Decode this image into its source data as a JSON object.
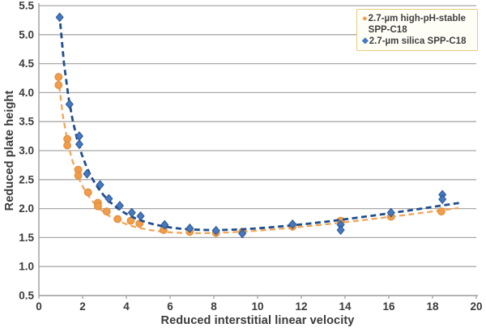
{
  "chart_data": {
    "type": "scatter",
    "title": "",
    "xlabel": "Reduced interstitial linear velocity",
    "ylabel": "Reduced plate height",
    "xlim": [
      0,
      20
    ],
    "ylim": [
      0.5,
      5.5
    ],
    "x_ticks": [
      0,
      2,
      4,
      6,
      8,
      10,
      12,
      14,
      16,
      18,
      20
    ],
    "y_ticks": [
      0.5,
      1.0,
      1.5,
      2.0,
      2.5,
      3.0,
      3.5,
      4.0,
      4.5,
      5.0,
      5.5
    ],
    "grid": "horizontal-only",
    "legend_position": "top-right",
    "colors": {
      "gridline": "#a9a9a9",
      "axis_line": "#9b9b9b",
      "tick_text": "#3b3b3b",
      "legend_border": "#e9cb7b",
      "legend_bg": "#fffef6"
    },
    "series": [
      {
        "name": "2.7-µm high-pH-stable SPP-C18",
        "marker": "circle",
        "marker_fill": "#f09c4b",
        "marker_stroke": "#de8a35",
        "line_color": "#f2a558",
        "line_style": "dashed",
        "points": [
          [
            0.9,
            4.27
          ],
          [
            0.9,
            4.13
          ],
          [
            1.3,
            3.2
          ],
          [
            1.3,
            3.09
          ],
          [
            1.8,
            2.67
          ],
          [
            1.8,
            2.57
          ],
          [
            2.25,
            2.28
          ],
          [
            2.7,
            2.1
          ],
          [
            2.7,
            2.04
          ],
          [
            3.1,
            1.95
          ],
          [
            3.6,
            1.82
          ],
          [
            4.2,
            1.79
          ],
          [
            4.6,
            1.74
          ],
          [
            5.7,
            1.63
          ],
          [
            6.9,
            1.6
          ],
          [
            8.1,
            1.58
          ],
          [
            9.3,
            1.6
          ],
          [
            11.6,
            1.69
          ],
          [
            13.8,
            1.79
          ],
          [
            16.1,
            1.86
          ],
          [
            18.4,
            1.95
          ]
        ],
        "trend_fit": {
          "A": 0.728,
          "B": 3.078,
          "C": 0.0584,
          "domain": [
            0.88,
            19.2
          ]
        }
      },
      {
        "name": "2.7-µm silica SPP-C18",
        "marker": "diamond",
        "marker_fill": "#4679bd",
        "marker_stroke": "#2b5597",
        "line_color": "#1f4e8f",
        "line_style": "dashed",
        "points": [
          [
            0.95,
            5.3
          ],
          [
            1.4,
            3.8
          ],
          [
            1.85,
            3.25
          ],
          [
            1.85,
            3.11
          ],
          [
            2.2,
            2.6
          ],
          [
            2.8,
            2.41
          ],
          [
            3.2,
            2.17
          ],
          [
            3.7,
            2.05
          ],
          [
            4.25,
            1.93
          ],
          [
            4.65,
            1.87
          ],
          [
            5.75,
            1.72
          ],
          [
            6.9,
            1.66
          ],
          [
            8.1,
            1.62
          ],
          [
            9.3,
            1.57
          ],
          [
            11.6,
            1.73
          ],
          [
            13.8,
            1.72
          ],
          [
            13.8,
            1.63
          ],
          [
            16.1,
            1.93
          ],
          [
            18.45,
            2.24
          ],
          [
            18.45,
            2.16
          ]
        ],
        "trend_fit": {
          "A": 0.5,
          "B": 4.5,
          "C": 0.071,
          "domain": [
            0.94,
            19.3
          ]
        }
      }
    ]
  }
}
